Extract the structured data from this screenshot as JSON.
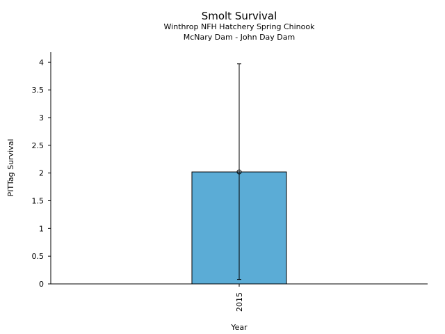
{
  "chart_data": {
    "type": "bar",
    "title": "Smolt Survival",
    "subtitle_lines": [
      "Winthrop NFH Hatchery Spring Chinook",
      "McNary Dam - John Day Dam"
    ],
    "xlabel": "Year",
    "ylabel": "PITTag Survival",
    "categories": [
      "2015"
    ],
    "values": [
      2.02
    ],
    "error_bars": [
      {
        "low": 0.08,
        "high": 3.97
      }
    ],
    "ylim": [
      0,
      4.18
    ],
    "yticks": [
      "0",
      "0.5",
      "1",
      "1.5",
      "2",
      "2.5",
      "3",
      "3.5",
      "4"
    ],
    "grid": false,
    "bar_color": "#5bacd6",
    "edge_color": "#000000"
  }
}
